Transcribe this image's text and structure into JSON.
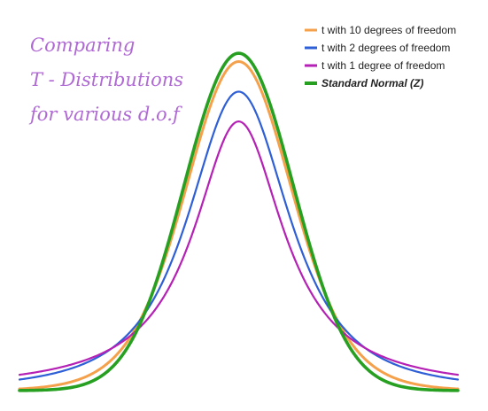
{
  "chart_data": {
    "type": "line",
    "title_lines": [
      "Comparing",
      "T - Distributions",
      "for various d.o.f"
    ],
    "xlabel": "",
    "ylabel": "",
    "xlim": [
      -4,
      4
    ],
    "ylim": [
      0,
      0.42
    ],
    "grid": false,
    "legend_position": "top-right",
    "series": [
      {
        "name": "t with 10 degrees of freedom",
        "dist": "t",
        "df": 10,
        "color": "#f5a04a",
        "width": 3,
        "bold": false
      },
      {
        "name": "t with 2 degrees of freedom",
        "dist": "t",
        "df": 2,
        "color": "#2f5fd6",
        "width": 2.2,
        "bold": false
      },
      {
        "name": "t with 1 degree of freedom",
        "dist": "t",
        "df": 1,
        "color": "#b521b5",
        "width": 2.2,
        "bold": false
      },
      {
        "name": "Standard Normal (Z)",
        "dist": "normal",
        "df": null,
        "color": "#27a022",
        "width": 3.6,
        "bold": true
      }
    ]
  }
}
